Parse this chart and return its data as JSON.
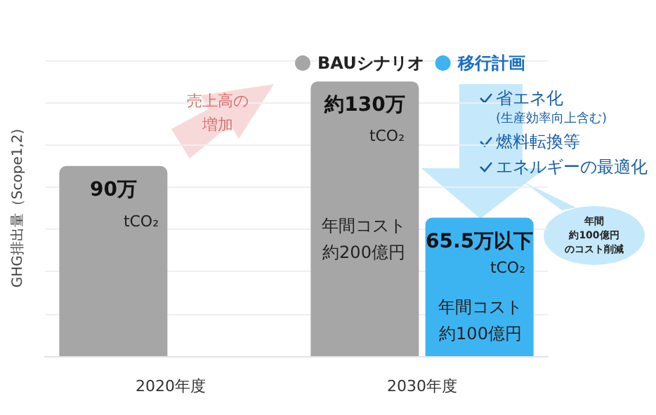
{
  "chart_data": {
    "type": "bar",
    "ylabel": "GHG排出量（Scope1,2)",
    "categories": [
      "2020年度",
      "2030年度"
    ],
    "series": [
      {
        "name": "BAUシナリオ",
        "color": "#a6a6a6",
        "values": [
          90,
          130
        ],
        "value_labels": [
          "90万",
          "約130万"
        ]
      },
      {
        "name": "移行計画",
        "color": "#3db4f2",
        "values": [
          null,
          65.5
        ],
        "value_labels": [
          null,
          "65.5万以下"
        ]
      }
    ],
    "ylim": [
      0,
      140
    ],
    "yticks": [
      {
        "value": 0,
        "label": null
      },
      {
        "value": 20,
        "label": null
      },
      {
        "value": 40,
        "label": null
      },
      {
        "value": 60,
        "label": null
      },
      {
        "value": 80,
        "label": null
      },
      {
        "value": 100,
        "label": null
      },
      {
        "value": 120,
        "label": null
      },
      {
        "value": 140,
        "label": null
      }
    ],
    "tick_labels": "x",
    "grid": "y",
    "legend": "top",
    "annotations": [
      "tCO₂",
      "tCO₂",
      "年間コスト",
      "約200億円",
      "tCO₂",
      "年間コスト",
      "約100億円",
      "売上高の",
      "増加",
      "省エネ化",
      "(生産効率向上含む)",
      "燃料転換等",
      "エネルギーの最適化",
      "年間",
      "約100億円",
      "のコスト削減"
    ]
  }
}
